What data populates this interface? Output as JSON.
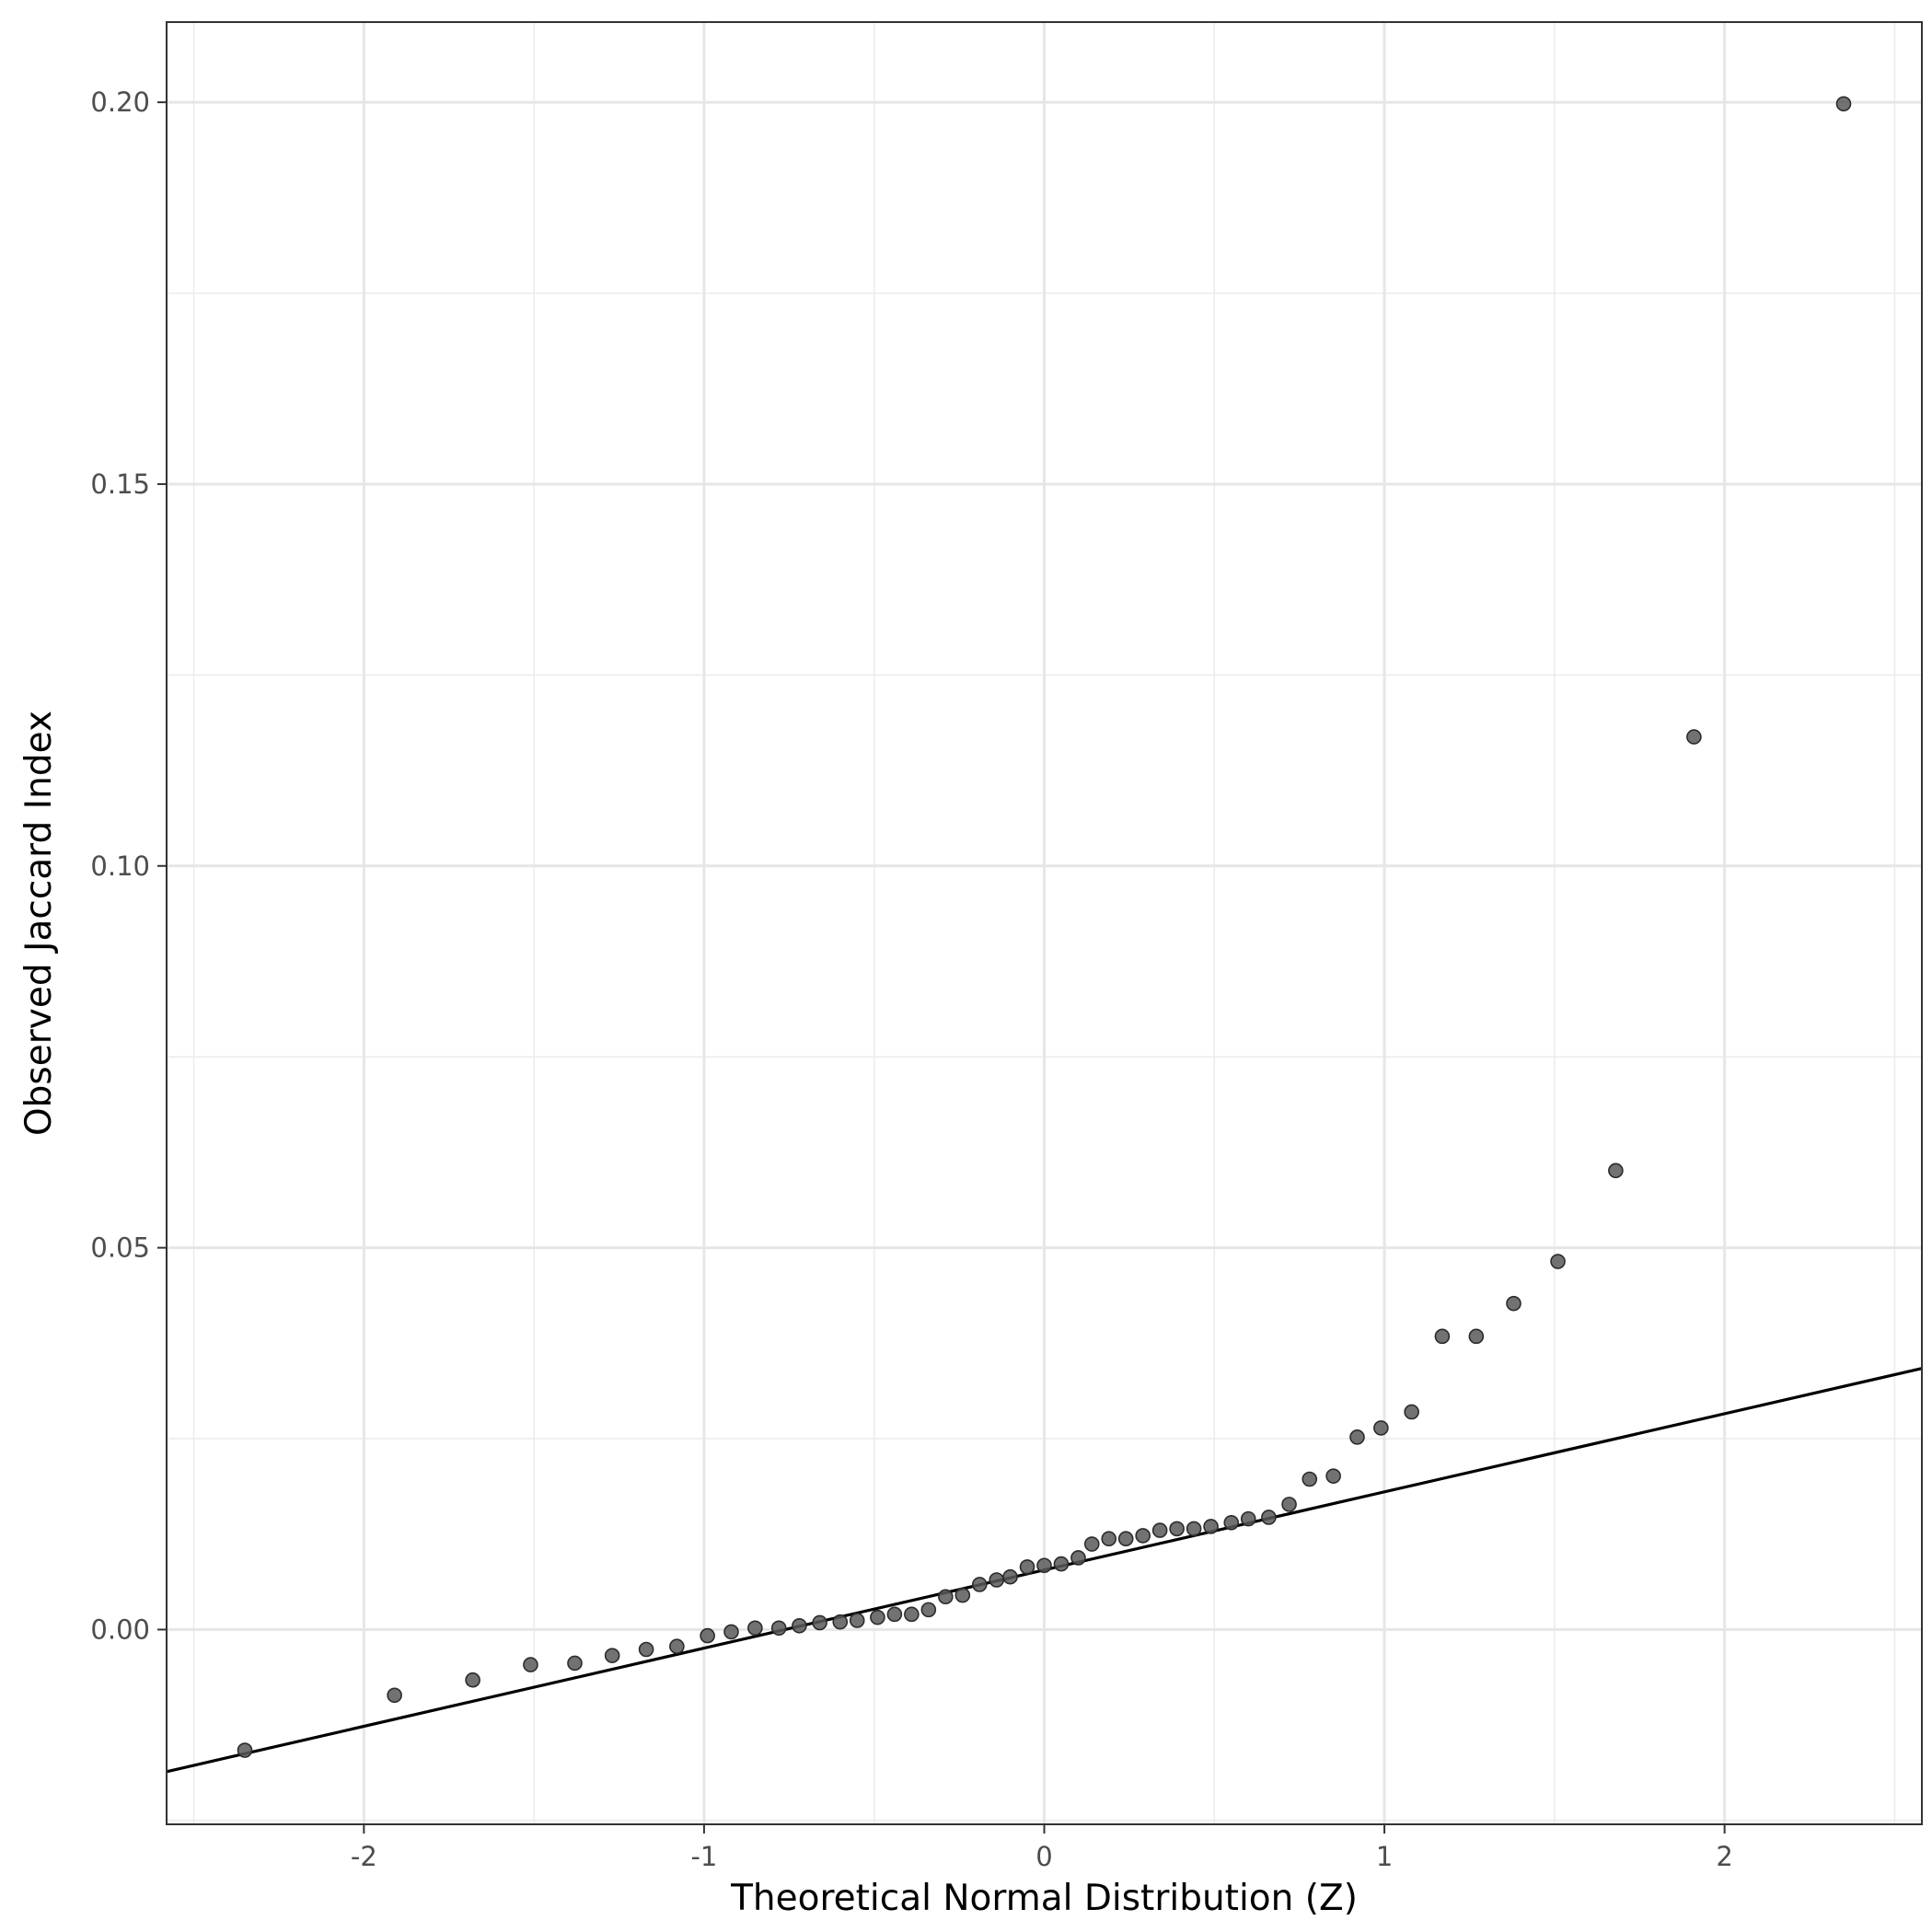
{
  "chart_data": {
    "type": "scatter",
    "title": "",
    "xlabel": "Theoretical Normal Distribution (Z)",
    "ylabel": "Observed Jaccard Index",
    "xlim": [
      -2.58,
      2.58
    ],
    "ylim": [
      -0.0255,
      0.2105
    ],
    "x_ticks": [
      -2,
      -1,
      0,
      1,
      2
    ],
    "x_tick_labels": [
      "-2",
      "-1",
      "0",
      "1",
      "2"
    ],
    "y_ticks": [
      0.0,
      0.05,
      0.1,
      0.15,
      0.2
    ],
    "y_tick_labels": [
      "0.00",
      "0.05",
      "0.10",
      "0.15",
      "0.20"
    ],
    "grid": true,
    "series": [
      {
        "type": "scatter",
        "color": "#595959",
        "points": [
          [
            -2.35,
            -0.0158
          ],
          [
            -1.91,
            -0.0086
          ],
          [
            -1.68,
            -0.0066
          ],
          [
            -1.51,
            -0.0046
          ],
          [
            -1.38,
            -0.0044
          ],
          [
            -1.27,
            -0.0034
          ],
          [
            -1.17,
            -0.0026
          ],
          [
            -1.08,
            -0.0022
          ],
          [
            -0.99,
            -0.0008
          ],
          [
            -0.92,
            -0.0003
          ],
          [
            -0.85,
            0.0002
          ],
          [
            -0.78,
            0.0002
          ],
          [
            -0.72,
            0.0005
          ],
          [
            -0.66,
            0.0009
          ],
          [
            -0.6,
            0.001
          ],
          [
            -0.55,
            0.0012
          ],
          [
            -0.49,
            0.0016
          ],
          [
            -0.44,
            0.002
          ],
          [
            -0.39,
            0.002
          ],
          [
            -0.34,
            0.0026
          ],
          [
            -0.29,
            0.0043
          ],
          [
            -0.24,
            0.0045
          ],
          [
            -0.19,
            0.0059
          ],
          [
            -0.14,
            0.0065
          ],
          [
            -0.1,
            0.0069
          ],
          [
            -0.05,
            0.0082
          ],
          [
            0.0,
            0.0084
          ],
          [
            0.05,
            0.0086
          ],
          [
            0.1,
            0.0094
          ],
          [
            0.14,
            0.0112
          ],
          [
            0.19,
            0.0119
          ],
          [
            0.24,
            0.0119
          ],
          [
            0.29,
            0.0123
          ],
          [
            0.34,
            0.013
          ],
          [
            0.39,
            0.0132
          ],
          [
            0.44,
            0.0132
          ],
          [
            0.49,
            0.0135
          ],
          [
            0.55,
            0.014
          ],
          [
            0.6,
            0.0145
          ],
          [
            0.66,
            0.0147
          ],
          [
            0.72,
            0.0164
          ],
          [
            0.78,
            0.0197
          ],
          [
            0.85,
            0.0201
          ],
          [
            0.92,
            0.0252
          ],
          [
            0.99,
            0.0264
          ],
          [
            1.08,
            0.0285
          ],
          [
            1.17,
            0.0384
          ],
          [
            1.27,
            0.0384
          ],
          [
            1.38,
            0.0427
          ],
          [
            1.51,
            0.0482
          ],
          [
            1.68,
            0.0601
          ],
          [
            1.91,
            0.1169
          ],
          [
            2.35,
            0.1998
          ]
        ]
      },
      {
        "type": "line",
        "color": "#000000",
        "points": [
          [
            -2.58,
            -0.0186
          ],
          [
            2.58,
            0.0342
          ]
        ]
      }
    ]
  }
}
